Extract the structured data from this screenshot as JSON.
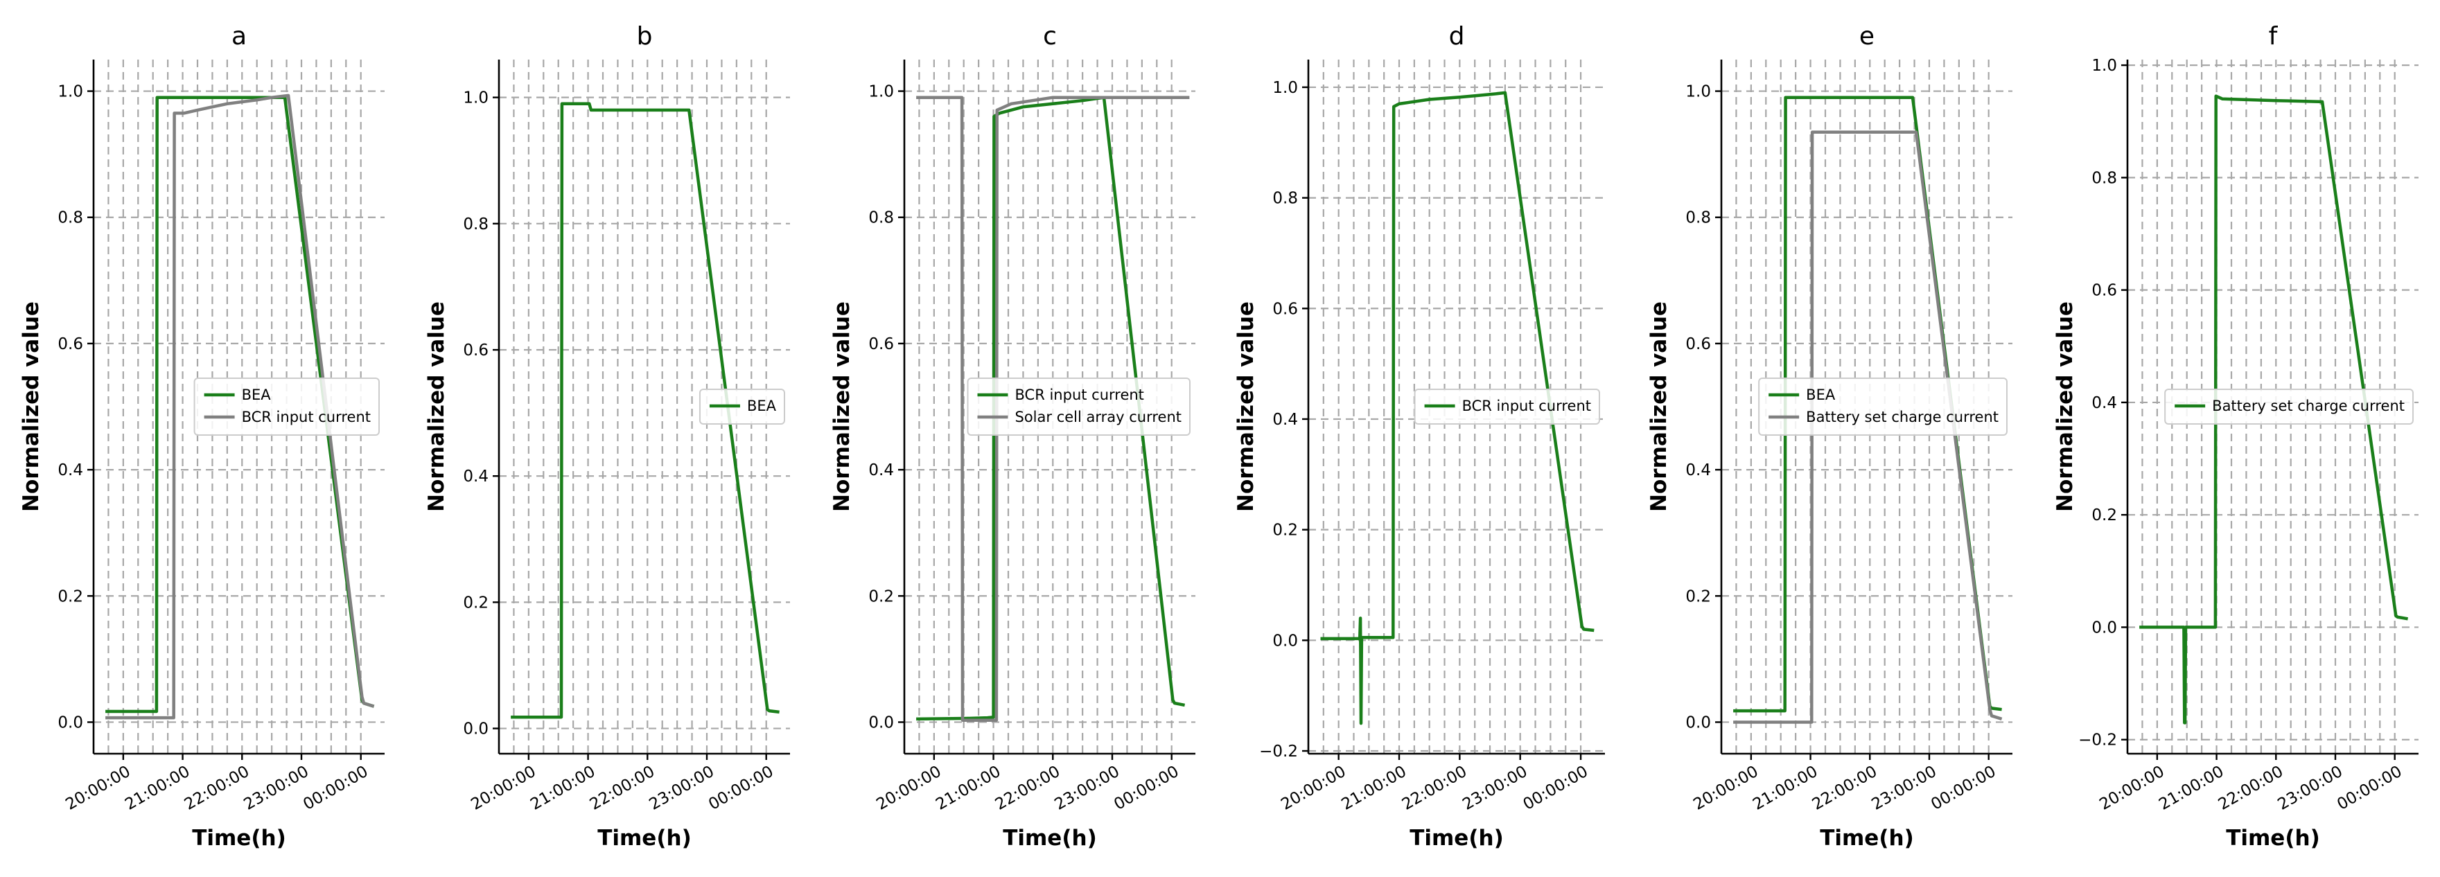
{
  "colors": {
    "green": "#1a7f1a",
    "gray": "#808080",
    "grid": "#a7a7a7"
  },
  "chart_data": [
    {
      "panel": "a",
      "type": "line",
      "title": "a",
      "xlabel": "Time(h)",
      "ylabel": "Normalized value",
      "xlim": [
        19.5,
        24.4
      ],
      "ylim": [
        -0.05,
        1.05
      ],
      "xgrid": [
        19.75,
        20.0,
        20.25,
        20.5,
        20.75,
        21.0,
        21.25,
        21.5,
        21.75,
        22.0,
        22.25,
        22.5,
        22.75,
        23.0,
        23.25,
        23.5,
        23.75,
        24.0
      ],
      "xticks": [
        {
          "v": 20.0,
          "label": "20:00:00"
        },
        {
          "v": 21.0,
          "label": "21:00:00"
        },
        {
          "v": 22.0,
          "label": "22:00:00"
        },
        {
          "v": 23.0,
          "label": "23:00:00"
        },
        {
          "v": 24.0,
          "label": "00:00:00"
        }
      ],
      "yticks": [
        {
          "v": 0.0,
          "label": "0.0"
        },
        {
          "v": 0.2,
          "label": "0.2"
        },
        {
          "v": 0.4,
          "label": "0.4"
        },
        {
          "v": 0.6,
          "label": "0.6"
        },
        {
          "v": 0.8,
          "label": "0.8"
        },
        {
          "v": 1.0,
          "label": "1.0"
        }
      ],
      "legend_loc": "center-right",
      "series": [
        {
          "name": "BEA",
          "color": "green",
          "x": [
            19.7,
            20.56,
            20.57,
            22.72,
            24.02,
            24.05,
            24.22
          ],
          "y": [
            0.017,
            0.017,
            0.99,
            0.99,
            0.035,
            0.03,
            0.025
          ]
        },
        {
          "name": "BCR input current",
          "color": "gray",
          "x": [
            19.7,
            20.85,
            20.86,
            21.02,
            21.25,
            21.5,
            21.75,
            22.0,
            22.25,
            22.5,
            22.78,
            24.02,
            24.05,
            24.22
          ],
          "y": [
            0.007,
            0.007,
            0.965,
            0.965,
            0.97,
            0.975,
            0.98,
            0.983,
            0.986,
            0.99,
            0.993,
            0.04,
            0.03,
            0.025
          ]
        }
      ]
    },
    {
      "panel": "b",
      "type": "line",
      "title": "b",
      "xlabel": "Time(h)",
      "ylabel": "Normalized value",
      "xlim": [
        19.5,
        24.4
      ],
      "ylim": [
        -0.04,
        1.06
      ],
      "xgrid": [
        19.75,
        20.0,
        20.25,
        20.5,
        20.75,
        21.0,
        21.25,
        21.5,
        21.75,
        22.0,
        22.25,
        22.5,
        22.75,
        23.0,
        23.25,
        23.5,
        23.75,
        24.0
      ],
      "xticks": [
        {
          "v": 20.0,
          "label": "20:00:00"
        },
        {
          "v": 21.0,
          "label": "21:00:00"
        },
        {
          "v": 22.0,
          "label": "22:00:00"
        },
        {
          "v": 23.0,
          "label": "23:00:00"
        },
        {
          "v": 24.0,
          "label": "00:00:00"
        }
      ],
      "yticks": [
        {
          "v": 0.0,
          "label": "0.0"
        },
        {
          "v": 0.2,
          "label": "0.2"
        },
        {
          "v": 0.4,
          "label": "0.4"
        },
        {
          "v": 0.6,
          "label": "0.6"
        },
        {
          "v": 0.8,
          "label": "0.8"
        },
        {
          "v": 1.0,
          "label": "1.0"
        }
      ],
      "legend_loc": "center-right",
      "series": [
        {
          "name": "BEA",
          "color": "green",
          "x": [
            19.7,
            20.55,
            20.56,
            20.95,
            21.02,
            21.05,
            22.7,
            24.02,
            24.05,
            24.22
          ],
          "y": [
            0.018,
            0.018,
            0.99,
            0.99,
            0.99,
            0.98,
            0.98,
            0.03,
            0.028,
            0.026
          ]
        }
      ]
    },
    {
      "panel": "c",
      "type": "line",
      "title": "c",
      "xlabel": "Time(h)",
      "ylabel": "Normalized value",
      "xlim": [
        19.5,
        24.4
      ],
      "ylim": [
        -0.05,
        1.05
      ],
      "xgrid": [
        19.75,
        20.0,
        20.25,
        20.5,
        20.75,
        21.0,
        21.25,
        21.5,
        21.75,
        22.0,
        22.25,
        22.5,
        22.75,
        23.0,
        23.25,
        23.5,
        23.75,
        24.0
      ],
      "xticks": [
        {
          "v": 20.0,
          "label": "20:00:00"
        },
        {
          "v": 21.0,
          "label": "21:00:00"
        },
        {
          "v": 22.0,
          "label": "22:00:00"
        },
        {
          "v": 23.0,
          "label": "23:00:00"
        },
        {
          "v": 24.0,
          "label": "00:00:00"
        }
      ],
      "yticks": [
        {
          "v": 0.0,
          "label": "0.0"
        },
        {
          "v": 0.2,
          "label": "0.2"
        },
        {
          "v": 0.4,
          "label": "0.4"
        },
        {
          "v": 0.6,
          "label": "0.6"
        },
        {
          "v": 0.8,
          "label": "0.8"
        },
        {
          "v": 1.0,
          "label": "1.0"
        }
      ],
      "legend_loc": "center-right",
      "series": [
        {
          "name": "BCR input current",
          "color": "green",
          "x": [
            19.7,
            20.55,
            20.9,
            21.0,
            21.01,
            21.1,
            21.5,
            22.0,
            22.5,
            22.86,
            24.02,
            24.05,
            24.22
          ],
          "y": [
            0.005,
            0.006,
            0.007,
            0.008,
            0.96,
            0.965,
            0.975,
            0.98,
            0.985,
            0.99,
            0.035,
            0.03,
            0.027
          ]
        },
        {
          "name": "Solar cell array current",
          "color": "gray",
          "x": [
            19.7,
            20.47,
            20.48,
            21.05,
            21.06,
            21.3,
            22.0,
            24.3
          ],
          "y": [
            0.99,
            0.99,
            0.003,
            0.003,
            0.97,
            0.98,
            0.99,
            0.99
          ]
        }
      ]
    },
    {
      "panel": "d",
      "type": "line",
      "title": "d",
      "xlabel": "Time(h)",
      "ylabel": "Normalized value",
      "xlim": [
        19.5,
        24.4
      ],
      "ylim": [
        -0.205,
        1.05
      ],
      "xgrid": [
        19.75,
        20.0,
        20.25,
        20.5,
        20.75,
        21.0,
        21.25,
        21.5,
        21.75,
        22.0,
        22.25,
        22.5,
        22.75,
        23.0,
        23.25,
        23.5,
        23.75,
        24.0
      ],
      "xticks": [
        {
          "v": 20.0,
          "label": "20:00:00"
        },
        {
          "v": 21.0,
          "label": "21:00:00"
        },
        {
          "v": 22.0,
          "label": "22:00:00"
        },
        {
          "v": 23.0,
          "label": "23:00:00"
        },
        {
          "v": 24.0,
          "label": "00:00:00"
        }
      ],
      "yticks": [
        {
          "v": -0.2,
          "label": "−0.2"
        },
        {
          "v": 0.0,
          "label": "0.0"
        },
        {
          "v": 0.2,
          "label": "0.2"
        },
        {
          "v": 0.4,
          "label": "0.4"
        },
        {
          "v": 0.6,
          "label": "0.6"
        },
        {
          "v": 0.8,
          "label": "0.8"
        },
        {
          "v": 1.0,
          "label": "1.0"
        }
      ],
      "legend_loc": "center-right",
      "series": [
        {
          "name": "BCR input current",
          "color": "green",
          "x": [
            19.7,
            20.35,
            20.36,
            20.37,
            20.38,
            20.39,
            20.9,
            20.91,
            21.0,
            21.5,
            22.0,
            22.3,
            22.5,
            22.75,
            24.02,
            24.05,
            24.22
          ],
          "y": [
            0.003,
            0.003,
            0.04,
            -0.15,
            0.005,
            0.005,
            0.005,
            0.965,
            0.97,
            0.978,
            0.982,
            0.985,
            0.987,
            0.99,
            0.025,
            0.02,
            0.018
          ]
        }
      ]
    },
    {
      "panel": "e",
      "type": "line",
      "title": "e",
      "xlabel": "Time(h)",
      "ylabel": "Normalized value",
      "xlim": [
        19.5,
        24.4
      ],
      "ylim": [
        -0.05,
        1.05
      ],
      "xgrid": [
        19.75,
        20.0,
        20.25,
        20.5,
        20.75,
        21.0,
        21.25,
        21.5,
        21.75,
        22.0,
        22.25,
        22.5,
        22.75,
        23.0,
        23.25,
        23.5,
        23.75,
        24.0
      ],
      "xticks": [
        {
          "v": 20.0,
          "label": "20:00:00"
        },
        {
          "v": 21.0,
          "label": "21:00:00"
        },
        {
          "v": 22.0,
          "label": "22:00:00"
        },
        {
          "v": 23.0,
          "label": "23:00:00"
        },
        {
          "v": 24.0,
          "label": "00:00:00"
        }
      ],
      "yticks": [
        {
          "v": 0.0,
          "label": "0.0"
        },
        {
          "v": 0.2,
          "label": "0.2"
        },
        {
          "v": 0.4,
          "label": "0.4"
        },
        {
          "v": 0.6,
          "label": "0.6"
        },
        {
          "v": 0.8,
          "label": "0.8"
        },
        {
          "v": 1.0,
          "label": "1.0"
        }
      ],
      "legend_loc": "center-right",
      "series": [
        {
          "name": "BEA",
          "color": "green",
          "x": [
            19.7,
            20.57,
            20.58,
            22.72,
            24.02,
            24.05,
            24.22
          ],
          "y": [
            0.018,
            0.018,
            0.99,
            0.99,
            0.025,
            0.022,
            0.02
          ]
        },
        {
          "name": "Battery set charge current",
          "color": "gray",
          "x": [
            19.7,
            21.02,
            21.03,
            22.78,
            24.02,
            24.05,
            24.22
          ],
          "y": [
            0.0,
            0.0,
            0.935,
            0.935,
            0.02,
            0.01,
            0.005
          ]
        }
      ]
    },
    {
      "panel": "f",
      "type": "line",
      "title": "f",
      "xlabel": "Time(h)",
      "ylabel": "Normalized value",
      "xlim": [
        19.5,
        24.4
      ],
      "ylim": [
        -0.225,
        1.01
      ],
      "xgrid": [
        19.75,
        20.0,
        20.25,
        20.5,
        20.75,
        21.0,
        21.25,
        21.5,
        21.75,
        22.0,
        22.25,
        22.5,
        22.75,
        23.0,
        23.25,
        23.5,
        23.75,
        24.0
      ],
      "xticks": [
        {
          "v": 20.0,
          "label": "20:00:00"
        },
        {
          "v": 21.0,
          "label": "21:00:00"
        },
        {
          "v": 22.0,
          "label": "22:00:00"
        },
        {
          "v": 23.0,
          "label": "23:00:00"
        },
        {
          "v": 24.0,
          "label": "00:00:00"
        }
      ],
      "yticks": [
        {
          "v": -0.2,
          "label": "−0.2"
        },
        {
          "v": 0.0,
          "label": "0.0"
        },
        {
          "v": 0.2,
          "label": "0.2"
        },
        {
          "v": 0.4,
          "label": "0.4"
        },
        {
          "v": 0.6,
          "label": "0.6"
        },
        {
          "v": 0.8,
          "label": "0.8"
        },
        {
          "v": 1.0,
          "label": "1.0"
        }
      ],
      "legend_loc": "center-right",
      "series": [
        {
          "name": "Battery set charge current",
          "color": "green",
          "x": [
            19.7,
            20.45,
            20.46,
            20.47,
            20.48,
            20.98,
            20.99,
            21.1,
            22.0,
            22.78,
            24.02,
            24.05,
            24.22
          ],
          "y": [
            0.0,
            0.0,
            -0.17,
            -0.17,
            0.0,
            0.0,
            0.945,
            0.94,
            0.937,
            0.935,
            0.02,
            0.018,
            0.015
          ]
        }
      ]
    }
  ]
}
